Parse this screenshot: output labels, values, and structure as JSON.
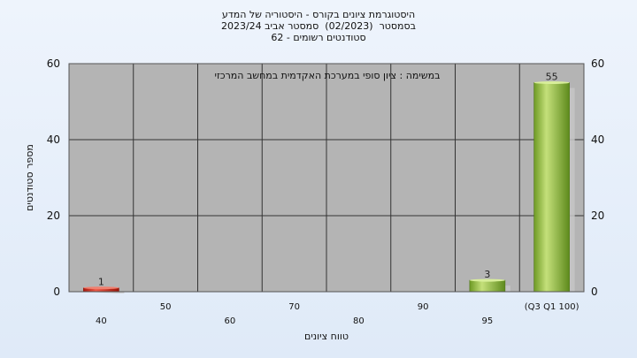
{
  "title_lines": [
    "היסטוגרמת ציונים בקורס - היסטוריה של המדע",
    "בסמסטר  (02/2023)  סמסטר אביב 2023/24",
    "סטודנטים רשומים - 62"
  ],
  "chart_data": {
    "type": "bar",
    "annotation": "במשימה : ציון סופי במערכת האקדמית במחשב המרכזי",
    "xlabel": "טווח ציונים",
    "ylabel": "מספר סטודנטים",
    "ylim": [
      0,
      60
    ],
    "yticks": [
      0,
      20,
      40,
      60
    ],
    "categories": [
      "40",
      "50",
      "60",
      "70",
      "80",
      "90",
      "95",
      "(Q3 Q1 100)"
    ],
    "values": [
      1,
      0,
      0,
      0,
      0,
      0,
      3,
      55
    ],
    "value_labels": [
      "1",
      "",
      "",
      "",
      "",
      "",
      "3",
      "55"
    ],
    "bar_colors": [
      "#d02a20",
      "#8ab838",
      "#8ab838",
      "#8ab838",
      "#8ab838",
      "#8ab838",
      "#8ab838",
      "#8ab838"
    ],
    "plot_background": "#b4b4b4",
    "grid": true,
    "y_axis_both_sides": true
  }
}
